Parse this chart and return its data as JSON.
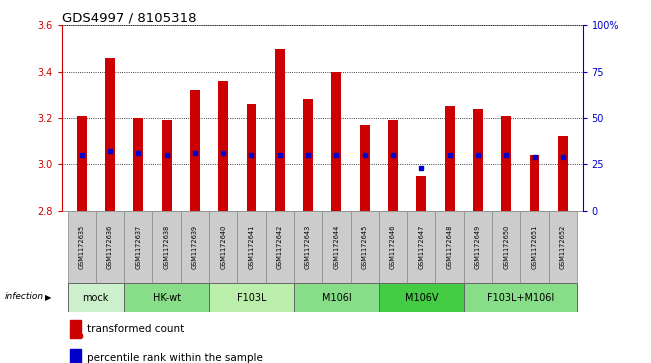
{
  "title": "GDS4997 / 8105318",
  "samples": [
    "GSM1172635",
    "GSM1172636",
    "GSM1172637",
    "GSM1172638",
    "GSM1172639",
    "GSM1172640",
    "GSM1172641",
    "GSM1172642",
    "GSM1172643",
    "GSM1172644",
    "GSM1172645",
    "GSM1172646",
    "GSM1172647",
    "GSM1172648",
    "GSM1172649",
    "GSM1172650",
    "GSM1172651",
    "GSM1172652"
  ],
  "transformed_counts": [
    3.21,
    3.46,
    3.2,
    3.19,
    3.32,
    3.36,
    3.26,
    3.5,
    3.28,
    3.4,
    3.17,
    3.19,
    2.95,
    3.25,
    3.24,
    3.21,
    3.04,
    3.12
  ],
  "percentile_ranks": [
    30,
    32,
    31,
    30,
    31,
    31,
    30,
    30,
    30,
    30,
    30,
    30,
    23,
    30,
    30,
    30,
    29,
    29
  ],
  "groups": [
    {
      "label": "mock",
      "start": 0,
      "end": 2,
      "color": "#ccf0cc"
    },
    {
      "label": "HK-wt",
      "start": 2,
      "end": 5,
      "color": "#88dd88"
    },
    {
      "label": "F103L",
      "start": 5,
      "end": 8,
      "color": "#bbeeaa"
    },
    {
      "label": "M106I",
      "start": 8,
      "end": 11,
      "color": "#88dd88"
    },
    {
      "label": "M106V",
      "start": 11,
      "end": 14,
      "color": "#44cc44"
    },
    {
      "label": "F103L+M106I",
      "start": 14,
      "end": 18,
      "color": "#88dd88"
    }
  ],
  "bar_color": "#cc0000",
  "dot_color": "#0000cc",
  "ylim_left": [
    2.8,
    3.6
  ],
  "ylim_right": [
    0,
    100
  ],
  "yticks_left": [
    2.8,
    3.0,
    3.2,
    3.4,
    3.6
  ],
  "yticks_right": [
    0,
    25,
    50,
    75,
    100
  ],
  "ytick_labels_right": [
    "0",
    "25",
    "50",
    "75",
    "100%"
  ],
  "tick_color_left": "#cc0000",
  "tick_color_right": "#0000cc",
  "bar_width": 0.35,
  "legend_items": [
    {
      "label": "transformed count",
      "color": "#cc0000"
    },
    {
      "label": "percentile rank within the sample",
      "color": "#0000cc"
    }
  ]
}
